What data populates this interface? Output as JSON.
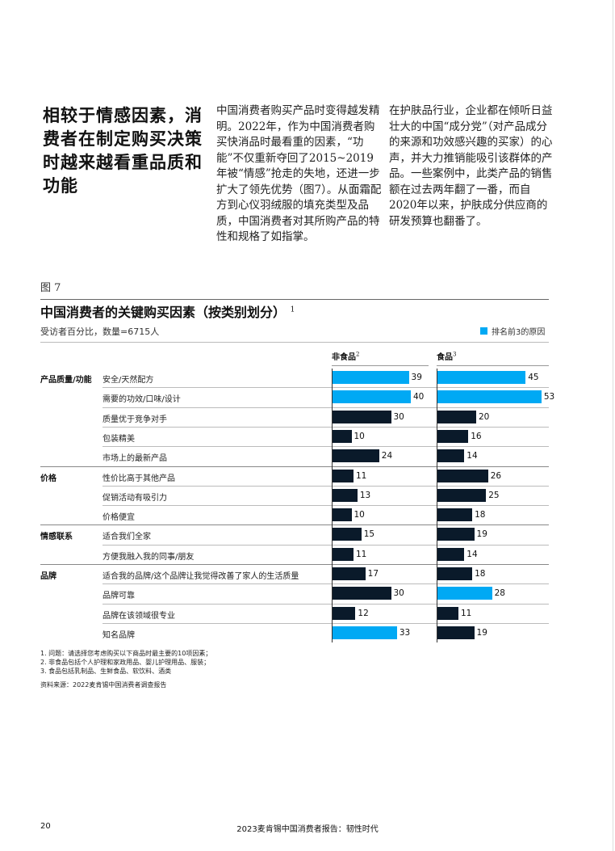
{
  "headline": "相较于情感因素，消费者在制定购买决策时越来越看重品质和功能",
  "body_col1": "中国消费者购买产品时变得越发精明。2022年，作为中国消费者购买快消品时最看重的因素，“功能”不仅重新夺回了2015~2019年被“情感”抢走的失地，还进一步扩大了领先优势（图7）。从面霜配方到心仪羽绒服的填充类型及品质，中国消费者对其所购产品的特性和规格了如指掌。",
  "body_col2": "在护肤品行业，企业都在倾听日益壮大的中国“成分党”（对产品成分的来源和功效感兴趣的买家）的心声，并大力推销能吸引该群体的产品。一些案例中，此类产品的销售额在过去两年翻了一番，而自2020年以来，护肤成分供应商的研发预算也翻番了。",
  "figure_label": "图 7",
  "chart_data": {
    "type": "bar",
    "orientation": "horizontal",
    "title": "中国消费者的关键购买因素（按类别划分）",
    "title_footnote": "1",
    "unit_label": "受访者百分比，数量=6715人",
    "legend": {
      "label": "排名前3的原因",
      "color": "#00a9f4",
      "placement": "top-right"
    },
    "colors": {
      "highlight": "#00a9f4",
      "default": "#0a1a2a"
    },
    "series": [
      {
        "name": "非食品",
        "footnote": "2",
        "values": [
          39,
          40,
          30,
          10,
          24,
          11,
          13,
          10,
          15,
          11,
          17,
          30,
          12,
          33
        ],
        "top3": [
          true,
          true,
          false,
          false,
          false,
          false,
          false,
          false,
          false,
          false,
          false,
          false,
          false,
          true
        ]
      },
      {
        "name": "食品",
        "footnote": "3",
        "values": [
          45,
          53,
          20,
          16,
          14,
          26,
          25,
          18,
          19,
          14,
          18,
          28,
          11,
          19
        ],
        "top3": [
          true,
          true,
          false,
          false,
          false,
          false,
          false,
          false,
          false,
          false,
          false,
          true,
          false,
          false
        ]
      }
    ],
    "groups": [
      {
        "name": "产品质量/功能",
        "start": 0
      },
      {
        "name": "价格",
        "start": 5
      },
      {
        "name": "情感联系",
        "start": 8
      },
      {
        "name": "品牌",
        "start": 10
      }
    ],
    "categories": [
      "安全/天然配方",
      "需要的功效/口味/设计",
      "质量优于竞争对手",
      "包装精美",
      "市场上的最新产品",
      "性价比高于其他产品",
      "促销活动有吸引力",
      "价格便宜",
      "适合我们全家",
      "方便我融入我的同事/朋友",
      "适合我的品牌/这个品牌让我觉得改善了家人的生活质量",
      "品牌可靠",
      "品牌在该领域很专业",
      "知名品牌"
    ]
  },
  "notes": [
    "1. 问题：请选择您考虑购买以下商品时最主要的10项因素；",
    "2. 非食品包括个人护理和家政用品、婴儿护理用品、服装；",
    "3. 食品包括乳制品、生鲜食品、软饮料、酒类"
  ],
  "source": "资料来源：2022麦肯锡中国消费者调查报告",
  "footer": {
    "page_number": "20",
    "title": "2023麦肯锡中国消费者报告：韧性时代"
  }
}
